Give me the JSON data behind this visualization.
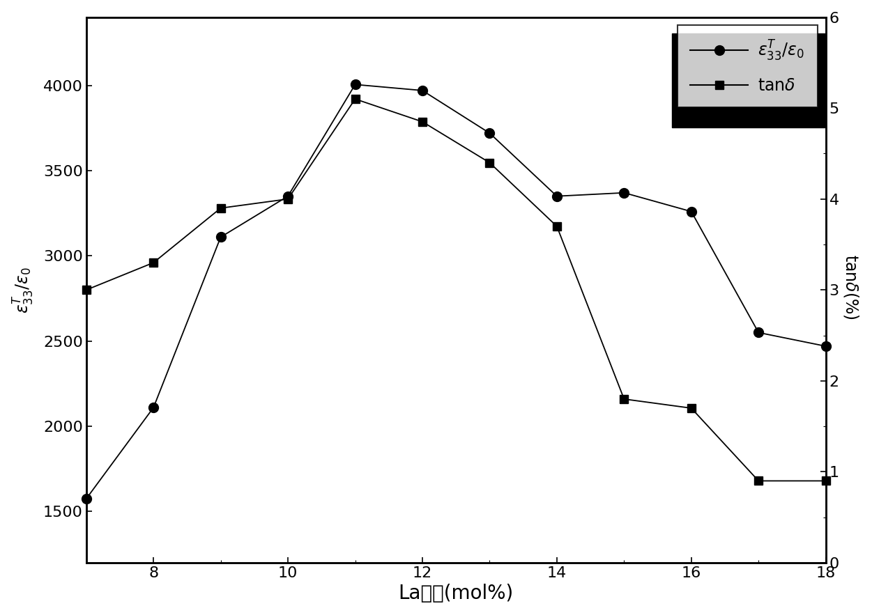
{
  "epsilon_x": [
    7,
    8,
    9,
    10,
    11,
    12,
    13,
    14,
    15,
    16,
    17,
    18
  ],
  "epsilon_y": [
    1575,
    2110,
    3110,
    3350,
    4005,
    3970,
    3720,
    3350,
    3370,
    3260,
    2550,
    2470
  ],
  "tand_x": [
    7,
    8,
    9,
    10,
    11,
    12,
    13,
    14,
    15,
    16,
    17,
    18
  ],
  "tand_y": [
    3.0,
    3.3,
    3.9,
    4.0,
    5.1,
    4.85,
    4.4,
    3.7,
    1.8,
    1.7,
    0.9,
    0.9
  ],
  "xlabel": "La含量(mol%)",
  "ylabel_left": "$\\varepsilon_{33}^{T}/\\varepsilon_{0}$",
  "ylabel_right": "tan$\\delta$(%)  ",
  "xlim": [
    7,
    18
  ],
  "ylim_left": [
    1200,
    4400
  ],
  "ylim_right": [
    0,
    6
  ],
  "xticks": [
    8,
    10,
    12,
    14,
    16,
    18
  ],
  "yticks_left": [
    1500,
    2000,
    2500,
    3000,
    3500,
    4000
  ],
  "yticks_right": [
    0,
    1,
    2,
    3,
    4,
    5,
    6
  ],
  "line_color": "black",
  "markersize_circle": 10,
  "markersize_square": 9,
  "linewidth": 1.3,
  "xlabel_fontsize": 20,
  "ylabel_fontsize": 17,
  "tick_fontsize": 16,
  "legend_fontsize": 17
}
